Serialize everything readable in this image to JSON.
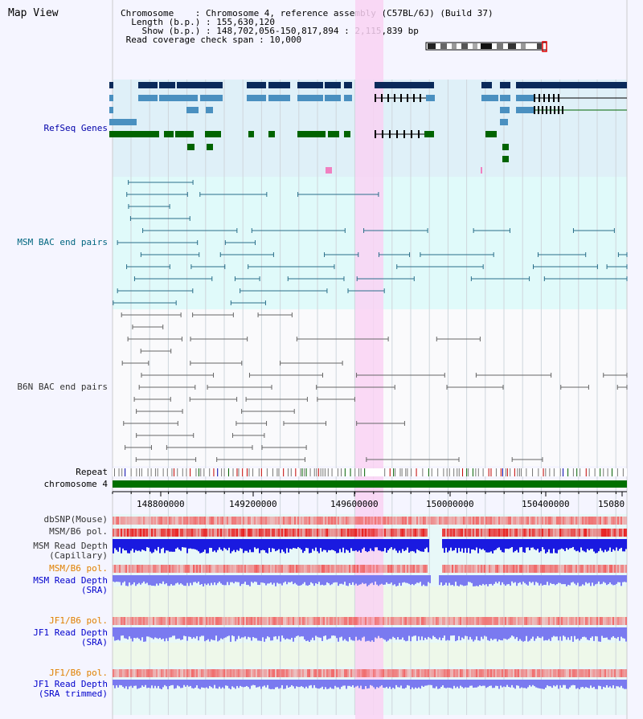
{
  "page": {
    "title": "Map View"
  },
  "info": {
    "chromosome": "Chromosome    : Chromosome 4, reference assembly (C57BL/6J) (Build 37)",
    "length": "  Length (b.p.) : 155,630,120",
    "show": "    Show (b.p.) : 148,702,056-150,817,894 : 2,115,839 bp",
    "span": " Read coverage check span : 10,000"
  },
  "tracks": {
    "refseq": {
      "label": "RefSeq Genes",
      "color": "#0000aa"
    },
    "msm_bac": {
      "label": "MSM BAC end pairs",
      "color": "#006680"
    },
    "b6n_bac": {
      "label": "B6N BAC end pairs",
      "color": "#333333"
    },
    "repeat": {
      "label": "Repeat",
      "color": "#000000"
    },
    "chromosome": {
      "label": "chromosome 4",
      "color": "#000000"
    },
    "dbsnp": {
      "label": "dbSNP(Mouse)",
      "color": "#333333"
    },
    "msm_b6_pol": {
      "label": "MSM/B6 pol.",
      "color": "#333333"
    },
    "msm_depth_cap_1": {
      "label": "MSM Read Depth",
      "color": "#333333"
    },
    "msm_depth_cap_2": {
      "label": "(Capillary)",
      "color": "#333333"
    },
    "msm_b6_pol_sra": {
      "label": "MSM/B6 pol.",
      "color": "#e08000"
    },
    "msm_depth_sra_1": {
      "label": "MSM Read Depth",
      "color": "#0000cc"
    },
    "msm_depth_sra_2": {
      "label": "(SRA)",
      "color": "#0000cc"
    },
    "jf1_b6_pol": {
      "label": "JF1/B6 pol.",
      "color": "#e08000"
    },
    "jf1_depth_1": {
      "label": "JF1 Read Depth",
      "color": "#0000cc"
    },
    "jf1_depth_2": {
      "label": "(SRA)",
      "color": "#0000cc"
    },
    "jf1_b6_pol_t": {
      "label": "JF1/B6 pol.",
      "color": "#e08000"
    },
    "jf1_depth_t_1": {
      "label": "JF1 Read Depth",
      "color": "#0000cc"
    },
    "jf1_depth_t_2": {
      "label": "(SRA trimmed)",
      "color": "#0000cc"
    }
  },
  "axis": {
    "ticks": [
      "148800000",
      "149200000",
      "149600000",
      "150000000",
      "150400000",
      "15080"
    ]
  },
  "colors": {
    "refseq_bg": "#dff0f8",
    "bac_bg": "#e0fafa",
    "b6n_bg": "#fafafc",
    "highlight": "#f9d2f3",
    "gene_dark": "#0a2a5a",
    "gene_light": "#4a90c0",
    "gene_green": "#006400",
    "bac_line": "#2a6f8a",
    "b6n_line": "#666666",
    "chrom_bar": "#007000",
    "snp_red": "#e82020",
    "depth_dark": "#1a1ae0",
    "depth_light": "#7a7af0"
  }
}
